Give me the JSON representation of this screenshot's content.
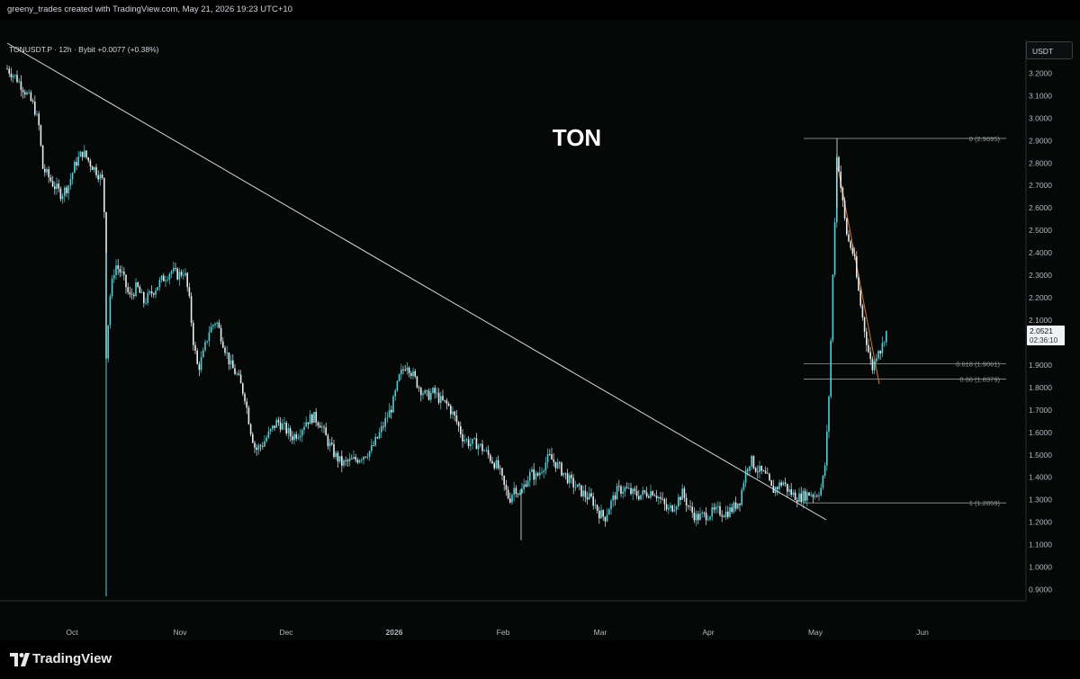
{
  "header": {
    "credit": "greeny_trades created with TradingView.com, May 21, 2026 19:23 UTC+10"
  },
  "legend": {
    "symbol_line": "TONUSDT.P · 12h · Bybit  +0.0077 (+0.38%)"
  },
  "currency_button": "USDT",
  "footer": {
    "brand": "TradingView"
  },
  "colors": {
    "background": "#060808",
    "candle_up": "#4fd1d9",
    "candle_down": "#e8eef0",
    "trendline": "#d8d8d8",
    "fib_line": "#8f9a96",
    "orange_trend": "#d97a2c"
  },
  "chart_data": {
    "type": "candlestick",
    "annotation": "TON",
    "price_axis": {
      "min": 0.85,
      "max": 3.35,
      "ticks": [
        "3.2000",
        "3.1000",
        "3.0000",
        "2.9000",
        "2.8000",
        "2.7000",
        "2.6000",
        "2.5000",
        "2.4000",
        "2.3000",
        "2.2000",
        "2.1000",
        "2.0000",
        "1.9000",
        "1.8000",
        "1.7000",
        "1.6000",
        "1.5000",
        "1.4000",
        "1.3000",
        "1.2000",
        "1.1000",
        "1.0000",
        "0.9000"
      ]
    },
    "time_axis": [
      "Oct",
      "Nov",
      "Dec",
      "2026",
      "Feb",
      "Mar",
      "Apr",
      "May",
      "Jun"
    ],
    "last_price": {
      "value": "2.0521",
      "countdown": "02:36:10"
    },
    "fib_levels": [
      {
        "label": "0 (2.9095)",
        "value": 2.9095
      },
      {
        "label": "0.618 (1.9061)",
        "value": 1.9061
      },
      {
        "label": "0.66 (1.8379)",
        "value": 1.8379
      },
      {
        "label": "1 (1.2859)",
        "value": 1.2859
      }
    ],
    "series_path": [
      [
        0,
        3.26
      ],
      [
        8,
        3.22
      ],
      [
        18,
        3.18
      ],
      [
        28,
        3.12
      ],
      [
        38,
        3.05
      ],
      [
        44,
        2.95
      ],
      [
        47,
        2.78
      ],
      [
        52,
        2.75
      ],
      [
        60,
        2.7
      ],
      [
        68,
        2.66
      ],
      [
        76,
        2.7
      ],
      [
        84,
        2.8
      ],
      [
        92,
        2.85
      ],
      [
        100,
        2.8
      ],
      [
        108,
        2.76
      ],
      [
        114,
        2.72
      ],
      [
        117,
        2.5
      ],
      [
        118,
        1.95
      ],
      [
        122,
        2.2
      ],
      [
        128,
        2.35
      ],
      [
        136,
        2.3
      ],
      [
        144,
        2.2
      ],
      [
        152,
        2.25
      ],
      [
        160,
        2.18
      ],
      [
        170,
        2.23
      ],
      [
        180,
        2.28
      ],
      [
        190,
        2.32
      ],
      [
        198,
        2.3
      ],
      [
        205,
        2.32
      ],
      [
        210,
        2.2
      ],
      [
        215,
        2.0
      ],
      [
        220,
        1.88
      ],
      [
        226,
        1.95
      ],
      [
        232,
        2.05
      ],
      [
        240,
        2.1
      ],
      [
        248,
        2.0
      ],
      [
        256,
        1.9
      ],
      [
        264,
        1.85
      ],
      [
        272,
        1.76
      ],
      [
        278,
        1.62
      ],
      [
        284,
        1.52
      ],
      [
        292,
        1.55
      ],
      [
        300,
        1.6
      ],
      [
        308,
        1.65
      ],
      [
        316,
        1.62
      ],
      [
        324,
        1.58
      ],
      [
        332,
        1.6
      ],
      [
        340,
        1.65
      ],
      [
        348,
        1.67
      ],
      [
        356,
        1.64
      ],
      [
        364,
        1.56
      ],
      [
        372,
        1.5
      ],
      [
        380,
        1.46
      ],
      [
        388,
        1.47
      ],
      [
        396,
        1.48
      ],
      [
        404,
        1.5
      ],
      [
        412,
        1.52
      ],
      [
        420,
        1.58
      ],
      [
        428,
        1.65
      ],
      [
        436,
        1.72
      ],
      [
        444,
        1.85
      ],
      [
        452,
        1.91
      ],
      [
        458,
        1.86
      ],
      [
        466,
        1.8
      ],
      [
        474,
        1.76
      ],
      [
        482,
        1.78
      ],
      [
        490,
        1.74
      ],
      [
        498,
        1.72
      ],
      [
        506,
        1.66
      ],
      [
        514,
        1.58
      ],
      [
        522,
        1.55
      ],
      [
        530,
        1.55
      ],
      [
        538,
        1.52
      ],
      [
        546,
        1.48
      ],
      [
        554,
        1.44
      ],
      [
        560,
        1.36
      ],
      [
        566,
        1.3
      ],
      [
        572,
        1.36
      ],
      [
        578,
        1.32
      ],
      [
        584,
        1.38
      ],
      [
        590,
        1.42
      ],
      [
        596,
        1.4
      ],
      [
        602,
        1.44
      ],
      [
        610,
        1.49
      ],
      [
        618,
        1.46
      ],
      [
        626,
        1.42
      ],
      [
        634,
        1.38
      ],
      [
        642,
        1.35
      ],
      [
        650,
        1.32
      ],
      [
        658,
        1.3
      ],
      [
        666,
        1.24
      ],
      [
        672,
        1.22
      ],
      [
        678,
        1.28
      ],
      [
        686,
        1.34
      ],
      [
        694,
        1.35
      ],
      [
        702,
        1.33
      ],
      [
        710,
        1.32
      ],
      [
        718,
        1.33
      ],
      [
        726,
        1.34
      ],
      [
        734,
        1.3
      ],
      [
        742,
        1.25
      ],
      [
        750,
        1.28
      ],
      [
        758,
        1.33
      ],
      [
        766,
        1.26
      ],
      [
        774,
        1.22
      ],
      [
        782,
        1.23
      ],
      [
        790,
        1.24
      ],
      [
        798,
        1.25
      ],
      [
        806,
        1.24
      ],
      [
        814,
        1.26
      ],
      [
        822,
        1.3
      ],
      [
        828,
        1.42
      ],
      [
        834,
        1.48
      ],
      [
        840,
        1.44
      ],
      [
        846,
        1.42
      ],
      [
        852,
        1.4
      ],
      [
        858,
        1.34
      ],
      [
        864,
        1.36
      ],
      [
        870,
        1.38
      ],
      [
        876,
        1.34
      ],
      [
        882,
        1.32
      ],
      [
        888,
        1.31
      ],
      [
        894,
        1.32
      ],
      [
        900,
        1.33
      ],
      [
        906,
        1.32
      ],
      [
        912,
        1.35
      ],
      [
        916,
        1.42
      ],
      [
        919,
        1.6
      ],
      [
        922,
        1.85
      ],
      [
        925,
        2.25
      ],
      [
        928,
        2.6
      ],
      [
        930,
        2.85
      ],
      [
        932,
        2.78
      ],
      [
        934,
        2.7
      ],
      [
        937,
        2.6
      ],
      [
        940,
        2.5
      ],
      [
        943,
        2.45
      ],
      [
        946,
        2.42
      ],
      [
        949,
        2.38
      ],
      [
        952,
        2.28
      ],
      [
        955,
        2.2
      ],
      [
        958,
        2.12
      ],
      [
        961,
        2.05
      ],
      [
        964,
        1.98
      ],
      [
        967,
        1.92
      ],
      [
        970,
        1.88
      ],
      [
        973,
        1.94
      ],
      [
        976,
        1.98
      ],
      [
        979,
        1.96
      ],
      [
        982,
        2.02
      ],
      [
        985,
        2.05
      ]
    ]
  }
}
